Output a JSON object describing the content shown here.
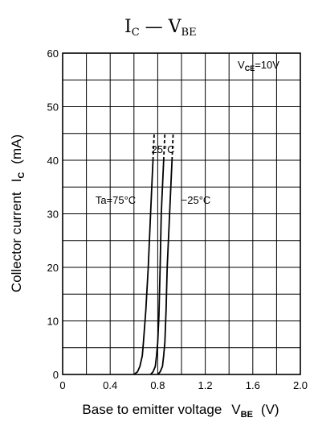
{
  "chart_data": {
    "type": "line",
    "title": {
      "i_letter": "I",
      "i_sub": "C",
      "dash": " — ",
      "v_letter": "V",
      "v_sub": "BE"
    },
    "xlabel": {
      "text": "Base to emitter voltage",
      "symbol": "V",
      "sub": "BE",
      "unit": "(V)"
    },
    "ylabel": {
      "text": "Collector current",
      "symbol": "I",
      "sub": "C",
      "unit": "(mA)"
    },
    "xlim": [
      0,
      2.0
    ],
    "ylim": [
      0,
      60
    ],
    "x_ticks": [
      "0",
      "0.4",
      "0.8",
      "1.2",
      "1.6",
      "2.0"
    ],
    "y_ticks": [
      "0",
      "10",
      "20",
      "30",
      "40",
      "50",
      "60"
    ],
    "x_tick_values": [
      0,
      0.4,
      0.8,
      1.2,
      1.6,
      2.0
    ],
    "y_tick_values": [
      0,
      10,
      20,
      30,
      40,
      50,
      60
    ],
    "grid": true,
    "grid_x_step": 0.2,
    "grid_y_step": 5,
    "condition": {
      "symbol": "V",
      "sub": "CE",
      "value": "=10V"
    },
    "series": [
      {
        "name": "Ta=75°C",
        "x": [
          0.6,
          0.63,
          0.65,
          0.67,
          0.68,
          0.7,
          0.72,
          0.74,
          0.76
        ],
        "y": [
          0,
          0.5,
          1.5,
          3.5,
          6,
          12,
          20,
          30,
          40
        ],
        "dashed_x": [
          0.76,
          0.77
        ],
        "dashed_y": [
          40,
          45
        ]
      },
      {
        "name": "25°C",
        "x": [
          0.74,
          0.76,
          0.78,
          0.79,
          0.8,
          0.81,
          0.82,
          0.83,
          0.85
        ],
        "y": [
          0,
          0.5,
          1.5,
          3.5,
          6,
          11,
          20,
          30,
          40
        ],
        "dashed_x": [
          0.85,
          0.86
        ],
        "dashed_y": [
          40,
          45
        ]
      },
      {
        "name": "−25°C",
        "x": [
          0.8,
          0.82,
          0.84,
          0.85,
          0.86,
          0.87,
          0.88,
          0.9,
          0.92
        ],
        "y": [
          0,
          0.5,
          1.5,
          3.5,
          6,
          12,
          20,
          30,
          40
        ],
        "dashed_x": [
          0.92,
          0.93
        ],
        "dashed_y": [
          40,
          45
        ]
      }
    ],
    "annotations": [
      {
        "text": "Ta=75°C",
        "anchor_series": 0
      },
      {
        "text": "25°C",
        "anchor_series": 1
      },
      {
        "text": "−25°C",
        "anchor_series": 2
      }
    ]
  }
}
